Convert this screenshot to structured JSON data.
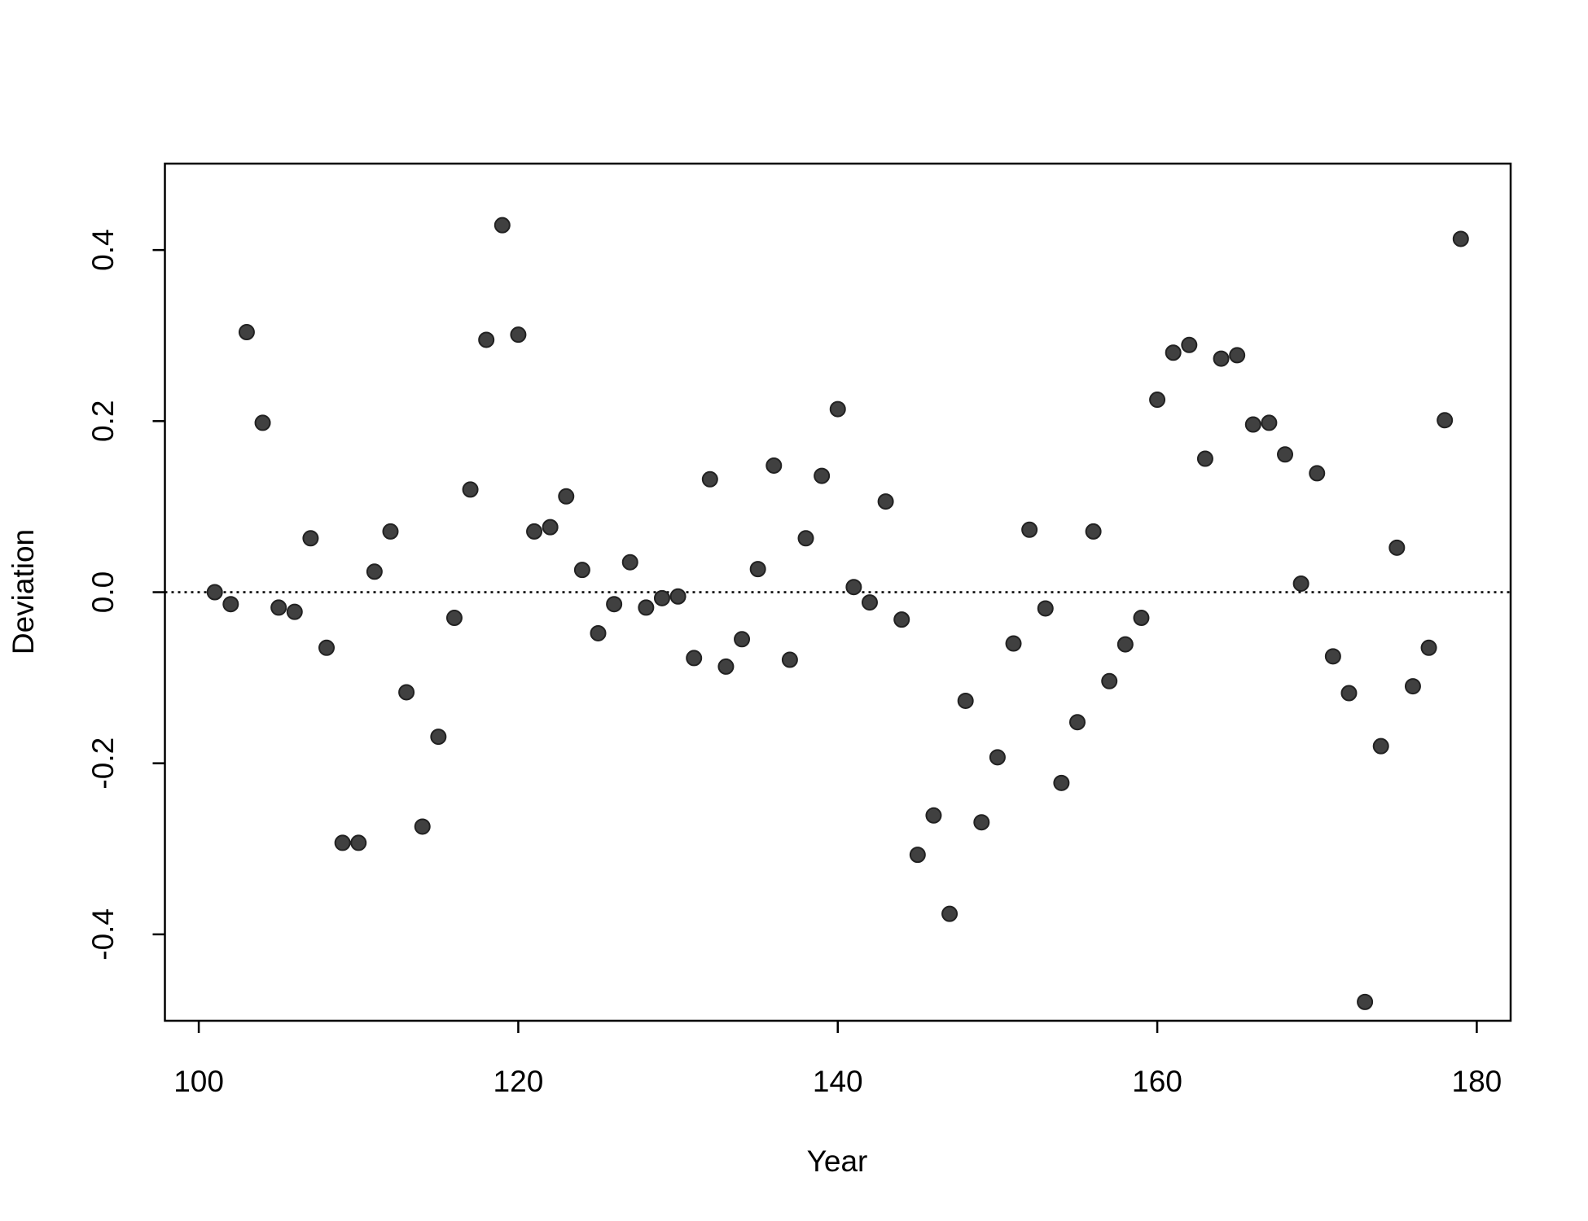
{
  "chart_data": {
    "type": "scatter",
    "xlabel": "Year",
    "ylabel": "Deviation",
    "x": [
      101,
      102,
      103,
      104,
      105,
      106,
      107,
      108,
      109,
      110,
      111,
      112,
      113,
      114,
      115,
      116,
      117,
      118,
      119,
      120,
      121,
      122,
      123,
      124,
      125,
      126,
      127,
      128,
      129,
      130,
      131,
      132,
      133,
      134,
      135,
      136,
      137,
      138,
      139,
      140,
      141,
      142,
      143,
      144,
      145,
      146,
      147,
      148,
      149,
      150,
      151,
      152,
      153,
      154,
      155,
      156,
      157,
      158,
      159,
      160,
      161,
      162,
      163,
      164,
      165,
      166,
      167,
      168,
      169,
      170,
      171,
      172,
      173,
      174,
      175,
      176,
      177,
      178,
      179
    ],
    "values": [
      0.0,
      -0.014,
      0.304,
      0.198,
      -0.018,
      -0.023,
      0.063,
      -0.065,
      -0.293,
      -0.293,
      0.024,
      0.071,
      -0.117,
      -0.274,
      -0.169,
      -0.03,
      0.12,
      0.295,
      0.429,
      0.301,
      0.071,
      0.076,
      0.112,
      0.026,
      -0.048,
      -0.014,
      0.035,
      -0.018,
      -0.007,
      -0.005,
      -0.077,
      0.132,
      -0.087,
      -0.055,
      0.027,
      0.148,
      -0.079,
      0.063,
      0.136,
      0.214,
      0.006,
      -0.012,
      0.106,
      -0.032,
      -0.307,
      -0.261,
      -0.376,
      -0.127,
      -0.269,
      -0.193,
      -0.06,
      0.073,
      -0.019,
      -0.223,
      -0.152,
      0.071,
      -0.104,
      -0.061,
      -0.03,
      0.225,
      0.28,
      0.289,
      0.156,
      0.273,
      0.277,
      0.196,
      0.198,
      0.161,
      0.01,
      0.139,
      -0.075,
      -0.118,
      -0.479,
      -0.18,
      0.052,
      -0.11,
      -0.065,
      0.201,
      0.413
    ],
    "color": "#404040",
    "xlim": [
      97.88,
      182.12
    ],
    "ylim": [
      -0.501,
      0.501
    ],
    "xticks": [
      100,
      120,
      140,
      160,
      180
    ],
    "yticks": [
      -0.4,
      -0.2,
      {
        "value": 0,
        "label": "0.0"
      },
      0.2,
      0.4
    ],
    "refline": 0
  }
}
